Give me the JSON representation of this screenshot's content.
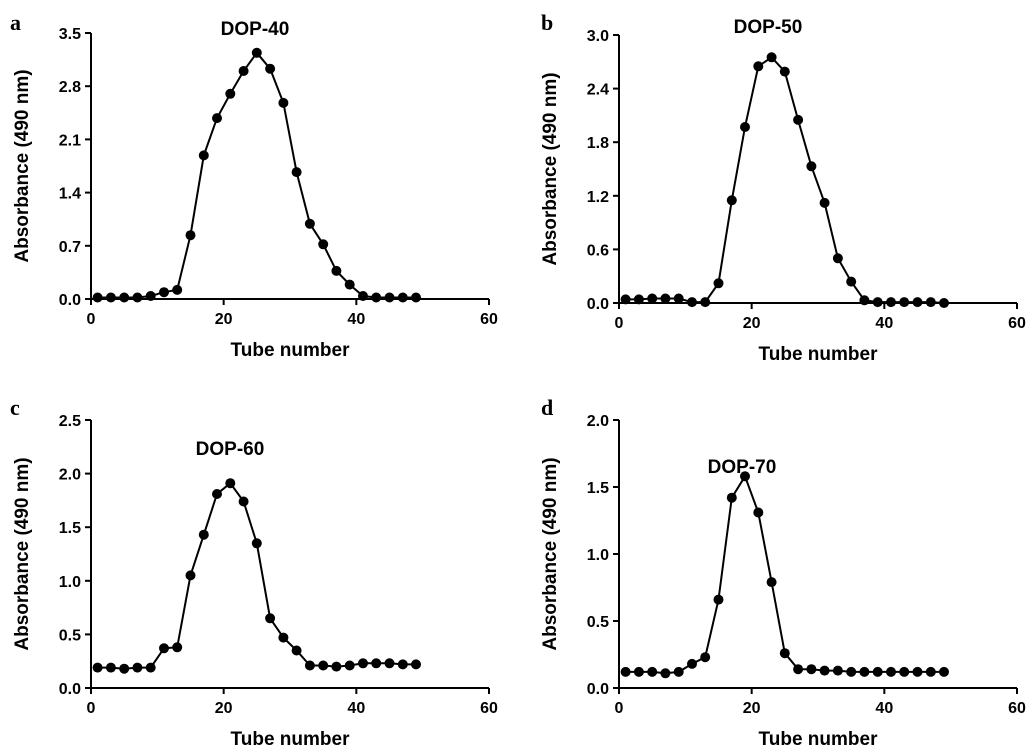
{
  "chart_data": [
    {
      "panel": "a",
      "type": "line",
      "title": "DOP-40",
      "xlabel": "Tube number",
      "ylabel": "Absorbance (490 nm)",
      "xlim": [
        0,
        60
      ],
      "ylim": [
        0,
        3.5
      ],
      "xticks": [
        "0",
        "20",
        "40",
        "60"
      ],
      "yticks": [
        "0.0",
        "0.7",
        "1.4",
        "2.1",
        "2.8",
        "3.5"
      ],
      "grid": false,
      "x": [
        1,
        3,
        5,
        7,
        9,
        11,
        13,
        15,
        17,
        19,
        21,
        23,
        25,
        27,
        29,
        31,
        33,
        35,
        37,
        39,
        41,
        43,
        45,
        47,
        49
      ],
      "y": [
        0.02,
        0.02,
        0.02,
        0.02,
        0.04,
        0.09,
        0.12,
        0.84,
        1.89,
        2.38,
        2.7,
        3.0,
        3.24,
        3.03,
        2.58,
        1.67,
        0.99,
        0.72,
        0.37,
        0.19,
        0.04,
        0.02,
        0.02,
        0.02,
        0.02
      ]
    },
    {
      "panel": "b",
      "type": "line",
      "title": "DOP-50",
      "xlabel": "Tube number",
      "ylabel": "Absorbance (490 nm)",
      "xlim": [
        0,
        60
      ],
      "ylim": [
        0,
        3.0
      ],
      "xticks": [
        "0",
        "20",
        "40",
        "60"
      ],
      "yticks": [
        "0.0",
        "0.6",
        "1.2",
        "1.8",
        "2.4",
        "3.0"
      ],
      "grid": false,
      "x": [
        1,
        3,
        5,
        7,
        9,
        11,
        13,
        15,
        17,
        19,
        21,
        23,
        25,
        27,
        29,
        31,
        33,
        35,
        37,
        39,
        41,
        43,
        45,
        47,
        49
      ],
      "y": [
        0.04,
        0.04,
        0.05,
        0.05,
        0.05,
        0.01,
        0.01,
        0.22,
        1.15,
        1.97,
        2.65,
        2.75,
        2.59,
        2.05,
        1.53,
        1.12,
        0.5,
        0.24,
        0.03,
        0.01,
        0.01,
        0.01,
        0.01,
        0.01,
        0.0
      ]
    },
    {
      "panel": "c",
      "type": "line",
      "title": "DOP-60",
      "xlabel": "Tube number",
      "ylabel": "Absorbance (490 nm)",
      "xlim": [
        0,
        60
      ],
      "ylim": [
        0,
        2.5
      ],
      "xticks": [
        "0",
        "20",
        "40",
        "60"
      ],
      "yticks": [
        "0.0",
        "0.5",
        "1.0",
        "1.5",
        "2.0",
        "2.5"
      ],
      "grid": false,
      "x": [
        1,
        3,
        5,
        7,
        9,
        11,
        13,
        15,
        17,
        19,
        21,
        23,
        25,
        27,
        29,
        31,
        33,
        35,
        37,
        39,
        41,
        43,
        45,
        47,
        49
      ],
      "y": [
        0.19,
        0.19,
        0.18,
        0.19,
        0.19,
        0.37,
        0.38,
        1.05,
        1.43,
        1.81,
        1.91,
        1.74,
        1.35,
        0.65,
        0.47,
        0.35,
        0.21,
        0.21,
        0.2,
        0.21,
        0.23,
        0.23,
        0.23,
        0.22,
        0.22
      ]
    },
    {
      "panel": "d",
      "type": "line",
      "title": "DOP-70",
      "xlabel": "Tube number",
      "ylabel": "Absorbance (490 nm)",
      "xlim": [
        0,
        60
      ],
      "ylim": [
        0,
        2.0
      ],
      "xticks": [
        "0",
        "20",
        "40",
        "60"
      ],
      "yticks": [
        "0.0",
        "0.5",
        "1.0",
        "1.5",
        "2.0"
      ],
      "grid": false,
      "x": [
        1,
        3,
        5,
        7,
        9,
        11,
        13,
        15,
        17,
        19,
        21,
        23,
        25,
        27,
        29,
        31,
        33,
        35,
        37,
        39,
        41,
        43,
        45,
        47,
        49
      ],
      "y": [
        0.12,
        0.12,
        0.12,
        0.11,
        0.12,
        0.18,
        0.23,
        0.66,
        1.42,
        1.58,
        1.31,
        0.79,
        0.26,
        0.14,
        0.14,
        0.13,
        0.13,
        0.12,
        0.12,
        0.12,
        0.12,
        0.12,
        0.12,
        0.12,
        0.12
      ]
    }
  ]
}
